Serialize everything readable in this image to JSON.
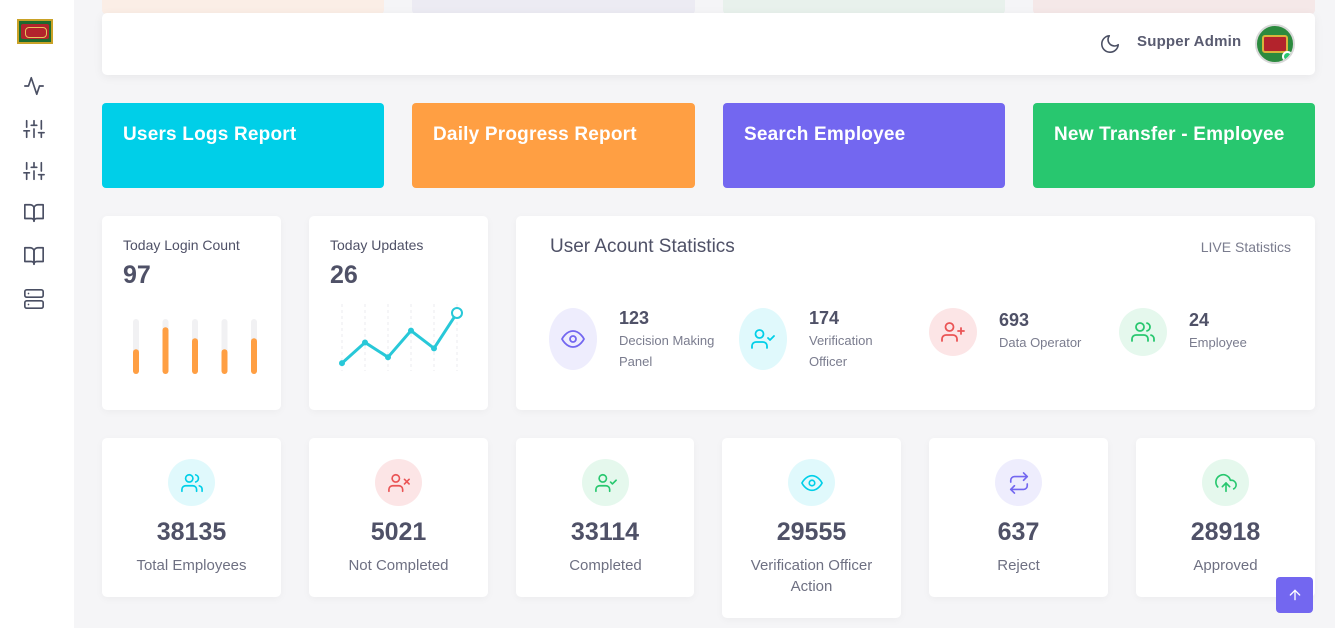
{
  "header": {
    "user_name": "Supper Admin"
  },
  "tiles": [
    {
      "label": "Users Logs Report",
      "color": "#00cfe8"
    },
    {
      "label": "Daily Progress Report",
      "color": "#ff9f43"
    },
    {
      "label": "Search Employee",
      "color": "#7367f0"
    },
    {
      "label": "New Transfer - Employee",
      "color": "#28c76f"
    }
  ],
  "login_card": {
    "title": "Today Login Count",
    "value": "97",
    "bars": [
      0.45,
      0.85,
      0.65,
      0.45,
      0.65
    ]
  },
  "updates_card": {
    "title": "Today Updates",
    "value": "26",
    "points": [
      10,
      45,
      20,
      65,
      35,
      95
    ]
  },
  "stats": {
    "title": "User Acount Statistics",
    "live": "LIVE Statistics",
    "items": [
      {
        "num": "123",
        "label": "Decision Making Panel",
        "icon": "eye-icon",
        "color": "#7367f0",
        "bg": "#eeedfd"
      },
      {
        "num": "174",
        "label": "Verification Officer",
        "icon": "user-check-icon",
        "color": "#00cfe8",
        "bg": "#e0f9fc"
      },
      {
        "num": "693",
        "label": "Data Operator",
        "icon": "user-plus-icon",
        "color": "#ea5455",
        "bg": "#fce5e6"
      },
      {
        "num": "24",
        "label": "Employee",
        "icon": "users-icon",
        "color": "#28c76f",
        "bg": "#e5f8ed"
      }
    ]
  },
  "summary": [
    {
      "value": "38135",
      "caption": "Total Employees",
      "icon": "users-icon",
      "color": "#00cfe8",
      "bg": "#e0f9fc"
    },
    {
      "value": "5021",
      "caption": "Not Completed",
      "icon": "user-x-icon",
      "color": "#ea5455",
      "bg": "#fce5e6"
    },
    {
      "value": "33114",
      "caption": "Completed",
      "icon": "user-check-icon",
      "color": "#28c76f",
      "bg": "#e5f8ed"
    },
    {
      "value": "29555",
      "caption": "Verification Officer Action",
      "icon": "eye-icon",
      "color": "#00cfe8",
      "bg": "#e0f9fc"
    },
    {
      "value": "637",
      "caption": "Reject",
      "icon": "repeat-icon",
      "color": "#7367f0",
      "bg": "#eeedfd"
    },
    {
      "value": "28918",
      "caption": "Approved",
      "icon": "upload-cloud-icon",
      "color": "#28c76f",
      "bg": "#e5f8ed"
    }
  ]
}
